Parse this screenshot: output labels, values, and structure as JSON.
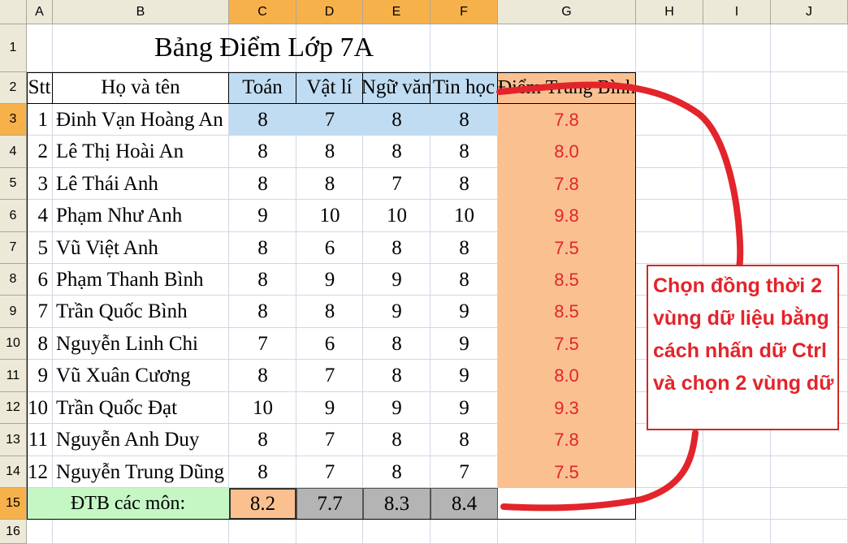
{
  "columns": [
    "A",
    "B",
    "C",
    "D",
    "E",
    "F",
    "G",
    "H",
    "I",
    "J"
  ],
  "rows": [
    "1",
    "2",
    "3",
    "4",
    "5",
    "6",
    "7",
    "8",
    "9",
    "10",
    "11",
    "12",
    "13",
    "14",
    "15",
    "16"
  ],
  "title": "Bảng Điểm Lớp 7A",
  "headers": [
    "Stt",
    "Họ và tên",
    "Toán",
    "Vật lí",
    "Ngữ văn",
    "Tin học",
    "Điểm Trung Bình"
  ],
  "students": [
    {
      "stt": "1",
      "name": "Đinh Vạn Hoàng An",
      "scores": [
        "8",
        "7",
        "8",
        "8"
      ],
      "avg": "7.8"
    },
    {
      "stt": "2",
      "name": "Lê Thị Hoài An",
      "scores": [
        "8",
        "8",
        "8",
        "8"
      ],
      "avg": "8.0"
    },
    {
      "stt": "3",
      "name": "Lê Thái Anh",
      "scores": [
        "8",
        "8",
        "7",
        "8"
      ],
      "avg": "7.8"
    },
    {
      "stt": "4",
      "name": "Phạm Như Anh",
      "scores": [
        "9",
        "10",
        "10",
        "10"
      ],
      "avg": "9.8"
    },
    {
      "stt": "5",
      "name": "Vũ Việt Anh",
      "scores": [
        "8",
        "6",
        "8",
        "8"
      ],
      "avg": "7.5"
    },
    {
      "stt": "6",
      "name": "Phạm Thanh Bình",
      "scores": [
        "8",
        "9",
        "9",
        "8"
      ],
      "avg": "8.5"
    },
    {
      "stt": "7",
      "name": "Trần Quốc Bình",
      "scores": [
        "8",
        "8",
        "9",
        "9"
      ],
      "avg": "8.5"
    },
    {
      "stt": "8",
      "name": "Nguyễn Linh Chi",
      "scores": [
        "7",
        "6",
        "8",
        "9"
      ],
      "avg": "7.5"
    },
    {
      "stt": "9",
      "name": "Vũ Xuân Cương",
      "scores": [
        "8",
        "7",
        "8",
        "9"
      ],
      "avg": "8.0"
    },
    {
      "stt": "10",
      "name": "Trần Quốc Đạt",
      "scores": [
        "10",
        "9",
        "9",
        "9"
      ],
      "avg": "9.3"
    },
    {
      "stt": "11",
      "name": "Nguyễn Anh Duy",
      "scores": [
        "8",
        "7",
        "8",
        "8"
      ],
      "avg": "7.8"
    },
    {
      "stt": "12",
      "name": "Nguyễn Trung Dũng",
      "scores": [
        "8",
        "7",
        "8",
        "7"
      ],
      "avg": "7.5"
    }
  ],
  "footer": {
    "label": "ĐTB các môn:",
    "values": [
      "8.2",
      "7.7",
      "8.3",
      "8.4"
    ]
  },
  "callout_lines": [
    "Chọn đồng thời 2",
    "vùng dữ liệu bằng",
    "cách nhấn dữ Ctrl",
    "và chọn 2 vùng dữ"
  ],
  "colors": {
    "selected_blue": "#c0dcf2",
    "avg_orange": "#fac090",
    "label_green": "#c4f7c4",
    "footer_gray": "#b4b4b4",
    "annotation_red": "#e3242b",
    "header_highlight": "#f7b14a"
  }
}
